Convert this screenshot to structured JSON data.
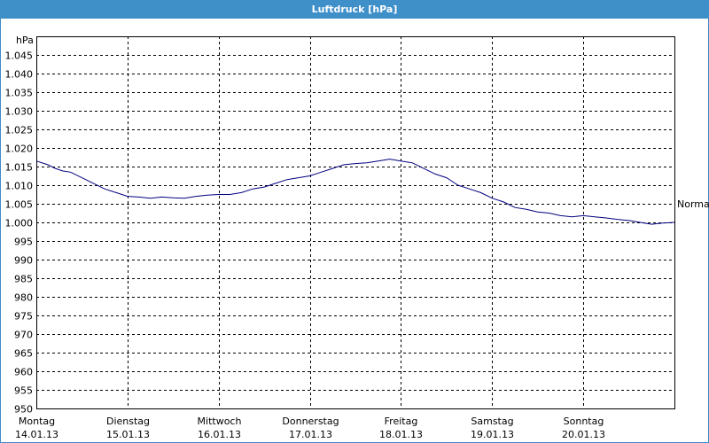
{
  "window": {
    "title": "Luftdruck [hPa]"
  },
  "colors": {
    "titlebar": "#3f8fc9",
    "line": "#000080",
    "grid": "#000000",
    "background": "#ffffff"
  },
  "chart_data": {
    "type": "line",
    "ylabel": "hPa",
    "ylim": [
      950,
      1050
    ],
    "yticks": [
      950,
      955,
      960,
      965,
      970,
      975,
      980,
      985,
      990,
      995,
      1000,
      1005,
      1010,
      1015,
      1020,
      1025,
      1030,
      1035,
      1040,
      1045
    ],
    "ytick_labels": [
      "950",
      "955",
      "960",
      "965",
      "970",
      "975",
      "980",
      "985",
      "990",
      "995",
      "1.000",
      "1.005",
      "1.010",
      "1.015",
      "1.020",
      "1.025",
      "1.030",
      "1.035",
      "1.040",
      "1.045"
    ],
    "xlim": [
      0,
      168
    ],
    "xticks": [
      0,
      24,
      48,
      72,
      96,
      120,
      144
    ],
    "x_unit": "hours since Montag 14.01.13 00:00",
    "xtick_labels": [
      {
        "day": "Montag",
        "date": "14.01.13"
      },
      {
        "day": "Dienstag",
        "date": "15.01.13"
      },
      {
        "day": "Mittwoch",
        "date": "16.01.13"
      },
      {
        "day": "Donnerstag",
        "date": "17.01.13"
      },
      {
        "day": "Freitag",
        "date": "18.01.13"
      },
      {
        "day": "Samstag",
        "date": "19.01.13"
      },
      {
        "day": "Sonntag",
        "date": "20.01.13"
      }
    ],
    "grid": true,
    "reference_line": {
      "label": "Normal",
      "value": 1005
    },
    "series": [
      {
        "x": [
          0,
          3,
          5,
          7,
          9,
          12,
          15,
          18,
          21,
          24,
          27,
          30,
          33,
          36,
          39,
          42,
          45,
          48,
          51,
          54,
          57,
          60,
          63,
          66,
          69,
          72,
          75,
          78,
          81,
          84,
          87,
          90,
          93,
          96,
          99,
          102,
          105,
          108,
          111,
          114,
          117,
          120,
          123,
          126,
          129,
          132,
          135,
          138,
          141,
          144,
          147,
          150,
          153,
          156,
          159,
          162,
          165,
          168
        ],
        "values": [
          1016.5,
          1015.5,
          1014.5,
          1013.8,
          1013.5,
          1012.0,
          1010.5,
          1009.0,
          1008.0,
          1007.0,
          1006.8,
          1006.5,
          1006.8,
          1006.6,
          1006.5,
          1007.0,
          1007.3,
          1007.5,
          1007.5,
          1008.0,
          1009.0,
          1009.5,
          1010.5,
          1011.5,
          1012.0,
          1012.5,
          1013.5,
          1014.5,
          1015.5,
          1015.8,
          1016.0,
          1016.5,
          1017.0,
          1016.5,
          1016.0,
          1014.5,
          1013.0,
          1012.0,
          1010.0,
          1009.0,
          1008.0,
          1006.5,
          1005.5,
          1004.0,
          1003.5,
          1002.8,
          1002.5,
          1001.8,
          1001.5,
          1001.8,
          1001.5,
          1001.2,
          1000.8,
          1000.5,
          1000.0,
          999.5,
          999.8,
          1000.0
        ]
      }
    ]
  }
}
